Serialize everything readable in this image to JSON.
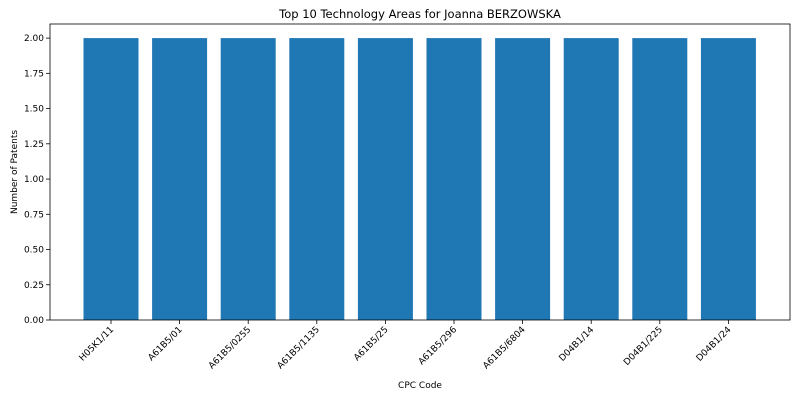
{
  "chart_data": {
    "type": "bar",
    "title": "Top 10 Technology Areas for Joanna BERZOWSKA",
    "xlabel": "CPC Code",
    "ylabel": "Number of Patents",
    "categories": [
      "H05K1/11",
      "A61B5/01",
      "A61B5/0255",
      "A61B5/1135",
      "A61B5/25",
      "A61B5/296",
      "A61B5/6804",
      "D04B1/14",
      "D04B1/225",
      "D04B1/24"
    ],
    "values": [
      2,
      2,
      2,
      2,
      2,
      2,
      2,
      2,
      2,
      2
    ],
    "ylim": [
      0,
      2.1
    ],
    "yticks": [
      "0.00",
      "0.25",
      "0.50",
      "0.75",
      "1.00",
      "1.25",
      "1.50",
      "1.75",
      "2.00"
    ],
    "grid": false,
    "bar_color": "#1f77b4"
  }
}
